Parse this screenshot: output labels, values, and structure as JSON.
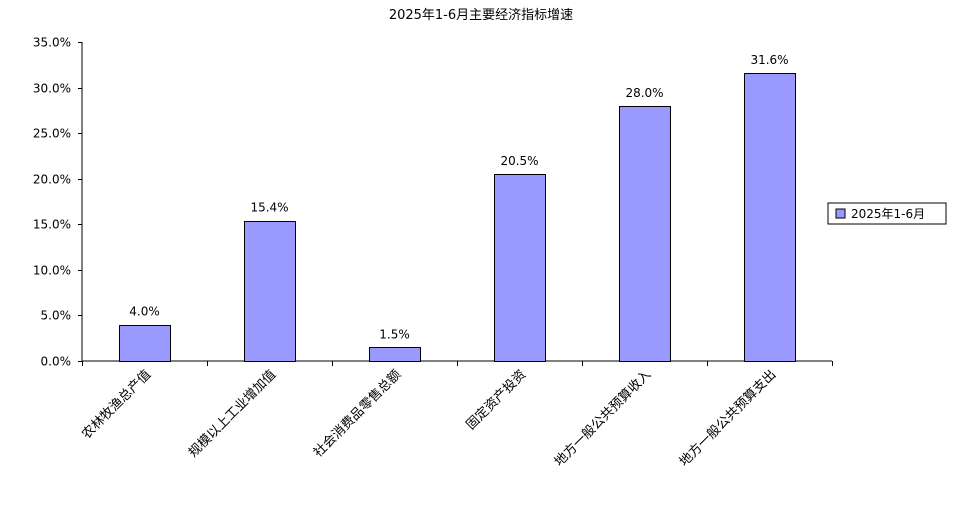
{
  "chart_data": {
    "type": "bar",
    "title": "2025年1-6月主要经济指标增速",
    "categories": [
      "农林牧渔总产值",
      "规模以上工业增加值",
      "社会消费品零售总额",
      "固定资产投资",
      "地方一般公共预算收入",
      "地方一般公共预算支出"
    ],
    "series": [
      {
        "name": "2025年1-6月",
        "values": [
          4.0,
          15.4,
          1.5,
          20.5,
          28.0,
          31.6
        ],
        "value_labels": [
          "4.0%",
          "15.4%",
          "1.5%",
          "20.5%",
          "28.0%",
          "31.6%"
        ],
        "color": "#9999ff"
      }
    ],
    "ylim": [
      0,
      35
    ],
    "y_ticks": [
      0,
      5,
      10,
      15,
      20,
      25,
      30,
      35
    ],
    "y_tick_labels": [
      "0.0%",
      "5.0%",
      "10.0%",
      "15.0%",
      "20.0%",
      "25.0%",
      "30.0%",
      "35.0%"
    ],
    "xlabel": "",
    "ylabel": "",
    "grid": false,
    "legend_position": "right"
  }
}
